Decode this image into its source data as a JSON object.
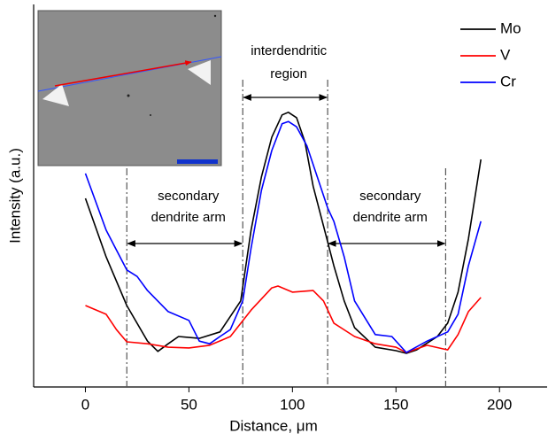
{
  "chart_data": {
    "type": "line",
    "x_label": "Distance, μm",
    "y_label": "Intensity (a.u.)",
    "xlim": [
      -25,
      223
    ],
    "ylim": [
      0,
      100
    ],
    "xticks": [
      0,
      50,
      100,
      150,
      200
    ],
    "legend": "upper right",
    "series": [
      {
        "name": "Mo",
        "color": "#000000",
        "x": [
          0,
          10,
          20,
          30,
          35,
          40,
          45,
          55,
          65,
          75,
          80,
          85,
          90,
          95,
          98,
          102,
          106,
          110,
          115,
          120,
          125,
          130,
          140,
          150,
          155,
          160,
          170,
          175,
          180,
          185,
          191
        ],
        "values": [
          49.3,
          34,
          21.3,
          12,
          9.3,
          11.3,
          13.2,
          12.7,
          14.4,
          22.5,
          41,
          54.9,
          65.3,
          71.1,
          71.8,
          70.4,
          64.1,
          52.5,
          42.1,
          31.7,
          22.5,
          15.5,
          10.4,
          9.5,
          8.8,
          9.7,
          13.2,
          16.7,
          24.8,
          38.7,
          59.5
        ]
      },
      {
        "name": "V",
        "color": "#ff0000",
        "x": [
          0,
          10,
          15,
          20,
          30,
          40,
          50,
          60,
          70,
          80,
          90,
          93,
          100,
          110,
          115,
          120,
          130,
          140,
          150,
          155,
          165,
          175,
          180,
          185,
          191
        ],
        "values": [
          21.3,
          19,
          15,
          11.8,
          11.3,
          10.4,
          10.2,
          10.9,
          13.2,
          20.1,
          25.9,
          26.4,
          24.8,
          25.2,
          22.5,
          16.7,
          13.2,
          11.3,
          10.4,
          9,
          10.9,
          9.7,
          13.7,
          19.7,
          23.4
        ]
      },
      {
        "name": "Cr",
        "color": "#0000ff",
        "x": [
          0,
          10,
          20,
          25,
          30,
          40,
          50,
          55,
          60,
          65,
          70,
          76,
          80,
          85,
          90,
          95,
          98,
          102,
          107,
          112,
          117,
          120,
          125,
          130,
          140,
          148,
          155,
          165,
          175,
          180,
          185,
          191
        ],
        "values": [
          55.8,
          41,
          30.6,
          28.9,
          25.2,
          19.7,
          17.4,
          12,
          11.3,
          13.2,
          15,
          22.5,
          36.3,
          51.4,
          61.8,
          68.8,
          69.4,
          68,
          63,
          54.9,
          46.8,
          43.3,
          34,
          22.5,
          13.7,
          13.2,
          9,
          12,
          14.4,
          19,
          31.7,
          43.3
        ]
      }
    ],
    "reference_lines": [
      20,
      76,
      117,
      174
    ],
    "arrows": [
      {
        "x": [
          20,
          76
        ],
        "label": [
          "secondary",
          "dendrite arm"
        ]
      },
      {
        "x": [
          76,
          117
        ],
        "label": [
          "interdendritic",
          "region"
        ]
      },
      {
        "x": [
          117,
          174
        ],
        "label": [
          "secondary",
          "dendrite arm"
        ]
      }
    ]
  }
}
